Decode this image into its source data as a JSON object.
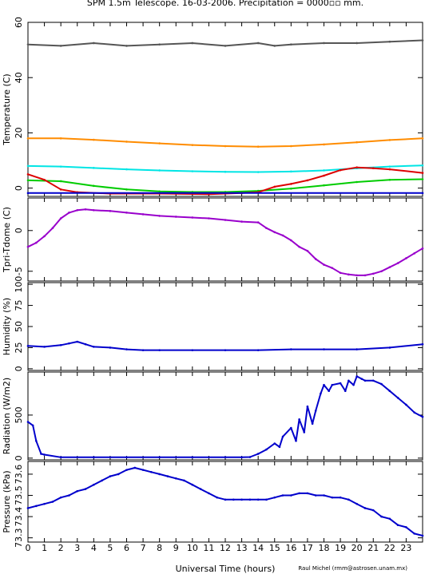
{
  "title": "SPM 1.5m Telescope. 16-03-2006. Precipitation = 0000▫▫ mm.",
  "xlabel": "Universal Time (hours)",
  "credit": "Raul Michel (rmm@astrosen.unam.mx)",
  "chart_data": [
    {
      "type": "scatter",
      "ylabel": "Temperature (C)",
      "xlim": [
        0,
        24
      ],
      "ylim": [
        -3,
        60
      ],
      "yticks": [
        0,
        20,
        40,
        60
      ],
      "series": [
        {
          "color": "#555555",
          "x": [
            0,
            2,
            4,
            6,
            8,
            10,
            12,
            14,
            15,
            16,
            18,
            20,
            22,
            24
          ],
          "y": [
            52,
            51.5,
            52.5,
            51.5,
            52,
            52.5,
            51.5,
            52.5,
            51.5,
            52,
            52.5,
            52.5,
            53,
            53.5
          ]
        },
        {
          "color": "#ff8c00",
          "x": [
            0,
            2,
            4,
            6,
            8,
            10,
            12,
            14,
            16,
            18,
            20,
            22,
            24
          ],
          "y": [
            18,
            18,
            17.5,
            16.8,
            16.2,
            15.6,
            15.2,
            15,
            15.2,
            15.8,
            16.6,
            17.4,
            18
          ]
        },
        {
          "color": "#00e5e5",
          "x": [
            0,
            2,
            4,
            6,
            8,
            10,
            12,
            14,
            16,
            18,
            20,
            22,
            24
          ],
          "y": [
            8,
            7.8,
            7.3,
            6.8,
            6.4,
            6.1,
            5.9,
            5.8,
            6,
            6.4,
            7.2,
            7.8,
            8.2
          ]
        },
        {
          "color": "#00cc00",
          "x": [
            0,
            2,
            4,
            6,
            8,
            10,
            12,
            14,
            16,
            18,
            20,
            22,
            24
          ],
          "y": [
            2.8,
            2.5,
            0.8,
            -0.5,
            -1.2,
            -1.4,
            -1.4,
            -1,
            -0.2,
            1,
            2.2,
            3,
            3.2
          ]
        },
        {
          "color": "#dd0000",
          "x": [
            0,
            1,
            2,
            3,
            5,
            8,
            11,
            13,
            14,
            15,
            16,
            17,
            18,
            19,
            20,
            21,
            22,
            24
          ],
          "y": [
            5,
            3,
            -0.5,
            -1.5,
            -2,
            -2,
            -2.2,
            -1.8,
            -1.5,
            0.5,
            1.5,
            2.8,
            4.5,
            6.5,
            7.5,
            7.2,
            6.8,
            5.5
          ]
        },
        {
          "color": "#0000cc",
          "x": [
            0,
            24
          ],
          "y": [
            -1.8,
            -1.8
          ]
        }
      ]
    },
    {
      "type": "scatter",
      "ylabel": "Tpri-Tdome (C)",
      "xlim": [
        0,
        24
      ],
      "ylim": [
        -6.2,
        4
      ],
      "yticks": [
        -5,
        0
      ],
      "series": [
        {
          "color": "#9900cc",
          "x": [
            0,
            0.5,
            1,
            1.5,
            2,
            2.5,
            3,
            3.5,
            4,
            5,
            6,
            7,
            8,
            9,
            10,
            11,
            12,
            13,
            14,
            14.5,
            15,
            15.5,
            16,
            16.5,
            17,
            17.5,
            18,
            18.5,
            19,
            19.5,
            20,
            20.5,
            21,
            21.5,
            22,
            22.5,
            23,
            23.5,
            24
          ],
          "y": [
            -2,
            -1.5,
            -0.7,
            0.3,
            1.5,
            2.2,
            2.5,
            2.6,
            2.5,
            2.4,
            2.2,
            2,
            1.8,
            1.7,
            1.6,
            1.5,
            1.3,
            1.1,
            1,
            0.3,
            -0.2,
            -0.6,
            -1.2,
            -2,
            -2.5,
            -3.5,
            -4.2,
            -4.6,
            -5.2,
            -5.4,
            -5.5,
            -5.5,
            -5.3,
            -5,
            -4.5,
            -4,
            -3.4,
            -2.8,
            -2.2
          ]
        }
      ]
    },
    {
      "type": "scatter",
      "ylabel": "Humidity (%)",
      "xlim": [
        0,
        24
      ],
      "ylim": [
        -2,
        102
      ],
      "yticks": [
        0,
        25,
        50,
        75,
        100
      ],
      "series": [
        {
          "color": "#0000cc",
          "x": [
            0,
            1,
            2,
            2.5,
            3,
            3.5,
            4,
            5,
            6,
            7,
            8,
            10,
            12,
            14,
            16,
            18,
            20,
            22,
            24
          ],
          "y": [
            27,
            26,
            28,
            30,
            32,
            29,
            26,
            25,
            23,
            22,
            22,
            22,
            22,
            22,
            23,
            23,
            23,
            25,
            29
          ]
        }
      ]
    },
    {
      "type": "scatter",
      "ylabel": "Radiation (W/m2)",
      "xlim": [
        0,
        24
      ],
      "ylim": [
        -20,
        1000
      ],
      "yticks": [
        0,
        500
      ],
      "series": [
        {
          "color": "#0000cc",
          "x": [
            0,
            0.3,
            0.5,
            0.8,
            1,
            2,
            4,
            6,
            8,
            10,
            12,
            13,
            13.5,
            14,
            14.5,
            15,
            15.3,
            15.5,
            16,
            16.3,
            16.5,
            16.8,
            17,
            17.3,
            17.5,
            17.8,
            18,
            18.3,
            18.5,
            19,
            19.3,
            19.5,
            19.8,
            20,
            20.3,
            20.5,
            21,
            21.5,
            22,
            22.5,
            23,
            23.5,
            24
          ],
          "y": [
            420,
            380,
            200,
            50,
            40,
            10,
            10,
            10,
            10,
            10,
            10,
            10,
            12,
            50,
            100,
            170,
            130,
            250,
            350,
            200,
            450,
            300,
            600,
            400,
            550,
            750,
            850,
            780,
            850,
            870,
            780,
            900,
            850,
            950,
            920,
            900,
            900,
            860,
            780,
            700,
            620,
            530,
            480
          ]
        }
      ]
    },
    {
      "type": "scatter",
      "ylabel": "Pressure (kPa)",
      "xlim": [
        0,
        24
      ],
      "ylim": [
        73.28,
        73.66
      ],
      "yticks": [
        73.3,
        73.4,
        73.5,
        73.6
      ],
      "yticklabels": [
        "73.3",
        "73.4",
        "73.5",
        "73.6"
      ],
      "series": [
        {
          "color": "#0000cc",
          "x": [
            0,
            0.5,
            1,
            1.5,
            2,
            2.5,
            3,
            3.5,
            4,
            4.5,
            5,
            5.5,
            6,
            6.5,
            7,
            7.5,
            8,
            8.5,
            9,
            9.5,
            10,
            10.5,
            11,
            11.5,
            12,
            12.5,
            13,
            13.5,
            14,
            14.5,
            15,
            15.5,
            16,
            16.5,
            17,
            17.5,
            18,
            18.5,
            19,
            19.5,
            20,
            20.5,
            21,
            21.5,
            22,
            22.5,
            23,
            23.5,
            24
          ],
          "y": [
            73.44,
            73.45,
            73.46,
            73.47,
            73.49,
            73.5,
            73.52,
            73.53,
            73.55,
            73.57,
            73.59,
            73.6,
            73.62,
            73.63,
            73.62,
            73.61,
            73.6,
            73.59,
            73.58,
            73.57,
            73.55,
            73.53,
            73.51,
            73.49,
            73.48,
            73.48,
            73.48,
            73.48,
            73.48,
            73.48,
            73.49,
            73.5,
            73.5,
            73.51,
            73.51,
            73.5,
            73.5,
            73.49,
            73.49,
            73.48,
            73.46,
            73.44,
            73.43,
            73.4,
            73.39,
            73.36,
            73.35,
            73.32,
            73.31
          ]
        }
      ]
    }
  ]
}
